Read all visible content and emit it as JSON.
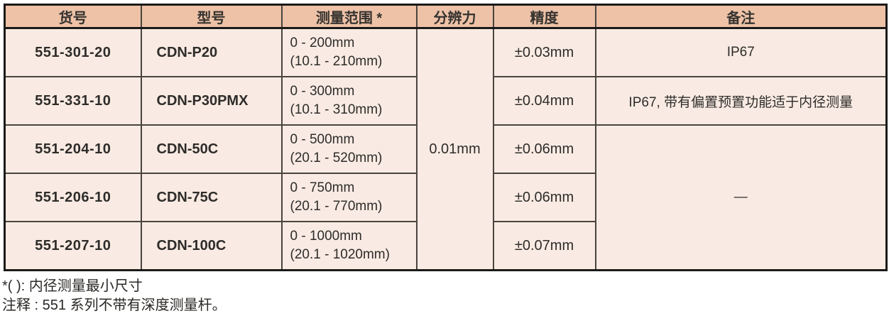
{
  "table": {
    "headers": {
      "part_no": "货号",
      "model": "型号",
      "range": "测量范围 *",
      "resolution": "分辨力",
      "accuracy": "精度",
      "remark": "备注"
    },
    "resolution_merged": "0.01mm",
    "remark_merged": "—",
    "rows": [
      {
        "part_no": "551-301-20",
        "model": "CDN-P20",
        "range_line1": "0 - 200mm",
        "range_line2": "(10.1 - 210mm)",
        "accuracy": "±0.03mm",
        "remark": "IP67"
      },
      {
        "part_no": "551-331-10",
        "model": "CDN-P30PMX",
        "range_line1": "0 - 300mm",
        "range_line2": "(10.1 - 310mm)",
        "accuracy": "±0.04mm",
        "remark": "IP67, 带有偏置预置功能适于内径测量"
      },
      {
        "part_no": "551-204-10",
        "model": "CDN-50C",
        "range_line1": "0 - 500mm",
        "range_line2": "(20.1 - 520mm)",
        "accuracy": "±0.06mm"
      },
      {
        "part_no": "551-206-10",
        "model": "CDN-75C",
        "range_line1": "0 - 750mm",
        "range_line2": "(20.1 - 770mm)",
        "accuracy": "±0.06mm"
      },
      {
        "part_no": "551-207-10",
        "model": "CDN-100C",
        "range_line1": "0 - 1000mm",
        "range_line2": "(20.1 - 1020mm)",
        "accuracy": "±0.07mm"
      }
    ]
  },
  "footnotes": {
    "line1": "*( ): 内径测量最小尺寸",
    "line2": "注释 : 551 系列不带有深度测量杆。"
  },
  "colors": {
    "header_bg": "#edc2a7",
    "body_bg": "#f9ebe3",
    "border_thick": "#1b1a18",
    "border_thin": "#4a443e",
    "text": "#2e2c2a"
  }
}
